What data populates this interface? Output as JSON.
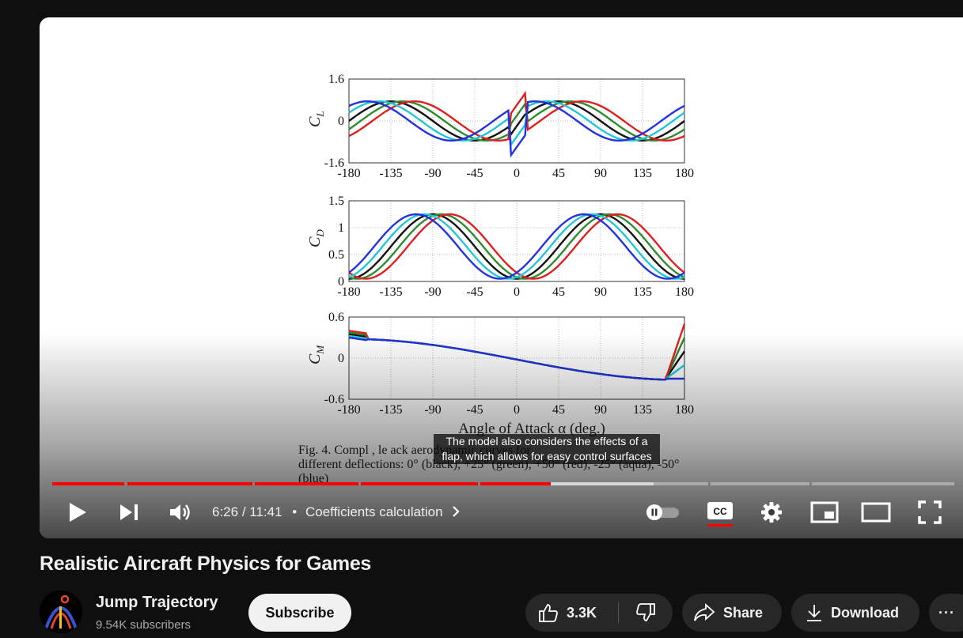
{
  "video": {
    "caption": "The model also considers the effects of a flap, which allows for easy control surfaces",
    "time_current": "6:26",
    "time_separator": " / ",
    "time_total": "11:41",
    "chapter_bullet": "•",
    "chapter": "Coefficients calculation",
    "progress": 0.55,
    "buffered": 0.66,
    "accent_color": "#ff0000"
  },
  "figure": {
    "panels": [
      {
        "ylabel": "C",
        "ysub": "L",
        "yticks": [
          "1.6",
          "0",
          "-1.6"
        ]
      },
      {
        "ylabel": "C",
        "ysub": "D",
        "yticks": [
          "1.5",
          "1",
          "0.5",
          "0"
        ]
      },
      {
        "ylabel": "C",
        "ysub": "M",
        "yticks": [
          "0.6",
          "0",
          "-0.6"
        ]
      }
    ],
    "xticks": [
      "-180",
      "-135",
      "-90",
      "-45",
      "0",
      "45",
      "90",
      "135",
      "180"
    ],
    "xlabel": "Angle of Attack α (deg.)",
    "caption_line1": "Fig. 4.   Compl        ,   le     ack   aerodynamic curves for",
    "caption_line2": "different deflections: 0° (black), +25° (green), +50° (red), -25° (aqua), -50°",
    "caption_line3": "(blue)"
  },
  "chart_data": {
    "type": "line",
    "xlabel": "Angle of Attack α (deg.)",
    "x": [
      -180,
      -135,
      -90,
      -45,
      0,
      45,
      90,
      135,
      180
    ],
    "series": [
      {
        "name": "0° (black)",
        "color": "#111111"
      },
      {
        "name": "+25° (green)",
        "color": "#2e8b2e"
      },
      {
        "name": "+50° (red)",
        "color": "#e02020"
      },
      {
        "name": "-25° (aqua)",
        "color": "#22c6d6"
      },
      {
        "name": "-50° (blue)",
        "color": "#2233dd"
      }
    ],
    "panels": [
      {
        "ylabel": "C_L",
        "ylim": [
          -1.6,
          1.6
        ]
      },
      {
        "ylabel": "C_D",
        "ylim": [
          0,
          1.5
        ]
      },
      {
        "ylabel": "C_M",
        "ylim": [
          -0.6,
          0.6
        ]
      }
    ]
  },
  "channel": {
    "name": "Jump Trajectory",
    "subscribers": "9.54K subscribers",
    "subscribe_label": "Subscribe"
  },
  "page": {
    "title": "Realistic Aircraft Physics for Games"
  },
  "actions": {
    "like_count": "3.3K",
    "share_label": "Share",
    "download_label": "Download",
    "more_label": "···"
  },
  "icons": {
    "play": "play-icon",
    "next": "next-icon",
    "volume": "volume-icon",
    "autoplay": "autoplay-toggle",
    "cc": "cc-icon",
    "settings": "gear-icon",
    "miniplayer": "miniplayer-icon",
    "theater": "theater-icon",
    "fullscreen": "fullscreen-icon"
  }
}
